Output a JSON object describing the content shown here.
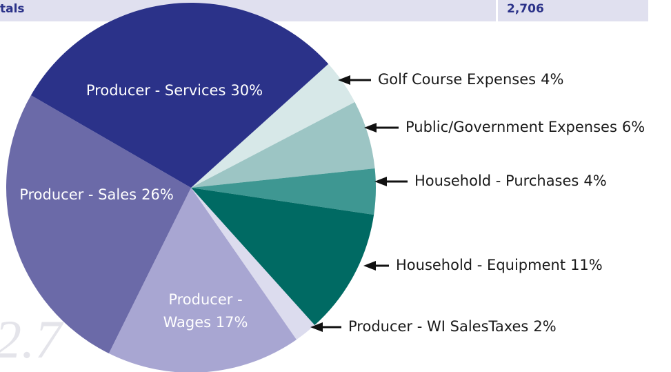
{
  "header": {
    "label": "tals",
    "value": "2,706"
  },
  "watermark": "2.7",
  "chart_data": {
    "type": "pie",
    "categories": [
      "Golf Course Expenses",
      "Public/Government Expenses",
      "Household - Purchases",
      "Household - Equipment",
      "Producer - WI SalesTaxes",
      "Producer - Wages",
      "Producer - Sales",
      "Producer - Services"
    ],
    "values": [
      4,
      6,
      4,
      11,
      2,
      17,
      26,
      30
    ],
    "value_labels": [
      "4%",
      "6%",
      "4%",
      "11%",
      "2%",
      "17%",
      "26%",
      "30%"
    ],
    "colors": [
      "#d7e8e8",
      "#9cc5c4",
      "#3e9792",
      "#006a63",
      "#dcdcee",
      "#a8a6d2",
      "#6b6aa8",
      "#2b3289"
    ]
  }
}
